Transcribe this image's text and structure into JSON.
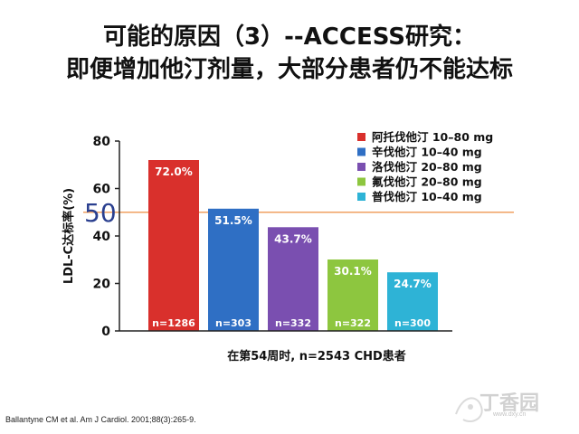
{
  "slide": {
    "title_line1": "可能的原因（3）--ACCESS研究：",
    "title_line2": "即便增加他汀剂量，大部分患者仍不能达标",
    "citation": "Ballantyne CM et al. Am J Cardiol. 2001;88(3):265-9.",
    "watermark_text": "丁香园",
    "watermark_url": "www.dxy.cn"
  },
  "chart_data": {
    "type": "bar",
    "title": "",
    "xlabel": "在第54周时, n=2543 CHD患者",
    "ylabel": "LDL-C达标率(%)",
    "ylim": [
      0,
      80
    ],
    "yticks": [
      0,
      20,
      40,
      60,
      80
    ],
    "grid": false,
    "legend_position": "top-right",
    "reference_line": {
      "value": 50,
      "label": "50",
      "color": "#f0a060"
    },
    "series": [
      {
        "name": "阿托伐他汀 10–80 mg",
        "value": 72.0,
        "value_label": "72.0%",
        "n_label": "n=1286",
        "color": "#d9302c"
      },
      {
        "name": "辛伐他汀 10–40 mg",
        "value": 51.5,
        "value_label": "51.5%",
        "n_label": "n=303",
        "color": "#2f6fc4"
      },
      {
        "name": "洛伐他汀 20–80 mg",
        "value": 43.7,
        "value_label": "43.7%",
        "n_label": "n=332",
        "color": "#7a4fb0"
      },
      {
        "name": "氟伐他汀 20–80 mg",
        "value": 30.1,
        "value_label": "30.1%",
        "n_label": "n=322",
        "color": "#8dc63f"
      },
      {
        "name": "普伐他汀 10–40 mg",
        "value": 24.7,
        "value_label": "24.7%",
        "n_label": "n=300",
        "color": "#2eb3d6"
      }
    ]
  }
}
